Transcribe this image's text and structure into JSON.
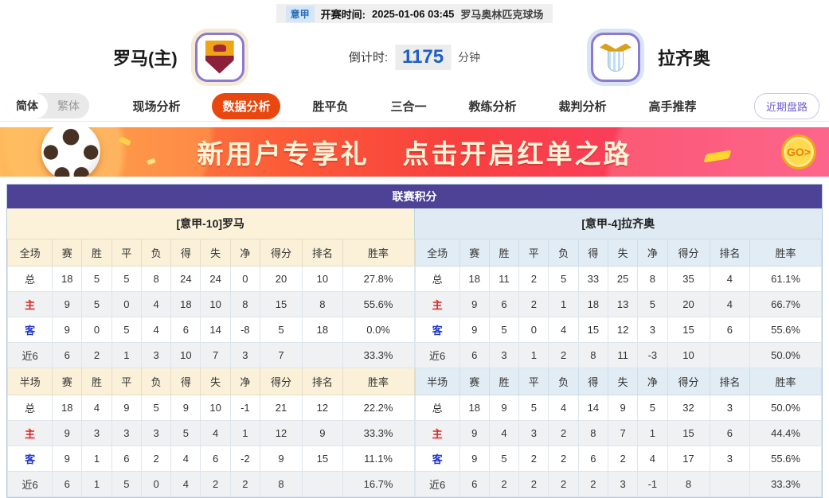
{
  "top_bar": {
    "league_badge": "意甲",
    "kickoff_label": "开赛时间:",
    "kickoff_time": "2025-01-06 03:45",
    "venue": "罗马奥林匹克球场"
  },
  "match": {
    "home_name": "罗马(主)",
    "away_name": "拉齐奥",
    "countdown_label": "倒计时:",
    "countdown_value": "1175",
    "countdown_unit": "分钟"
  },
  "nav": {
    "lang_simplified": "简体",
    "lang_traditional": "繁体",
    "tabs": [
      {
        "label": "现场分析",
        "active": false
      },
      {
        "label": "数据分析",
        "active": true
      },
      {
        "label": "胜平负",
        "active": false
      },
      {
        "label": "三合一",
        "active": false
      },
      {
        "label": "教练分析",
        "active": false
      },
      {
        "label": "裁判分析",
        "active": false
      },
      {
        "label": "高手推荐",
        "active": false
      }
    ],
    "recent_button": "近期盘路"
  },
  "banner": {
    "text_left": "新用户专享礼",
    "text_right": "点击开启红单之路",
    "go_label": "GO>"
  },
  "icons": {
    "home_crest": "roma-crest",
    "away_crest": "lazio-crest",
    "banner_left": "soccer-ball",
    "banner_right": "go-coin"
  },
  "colors": {
    "primary_purple": "#4d4296",
    "active_tab_orange": "#e8470f",
    "home_panel_cream": "#fcf2da",
    "away_panel_blue": "#dfeaf2",
    "home_label_red": "#dd2424",
    "away_label_blue": "#2336cf",
    "countdown_blue": "#1d5ec7",
    "league_badge_bg": "#d4e6f8",
    "league_badge_text": "#2b6cb8"
  },
  "standings": {
    "title": "联赛积分",
    "home_header": "[意甲-10]罗马",
    "away_header": "[意甲-4]拉齐奥",
    "full_label": "全场",
    "half_label": "半场",
    "columns": [
      "赛",
      "胜",
      "平",
      "负",
      "得",
      "失",
      "净",
      "得分",
      "排名",
      "胜率"
    ],
    "home_full": [
      {
        "label": "总",
        "type": "total",
        "cells": [
          "18",
          "5",
          "5",
          "8",
          "24",
          "24",
          "0",
          "20",
          "10",
          "27.8%"
        ]
      },
      {
        "label": "主",
        "type": "home",
        "cells": [
          "9",
          "5",
          "0",
          "4",
          "18",
          "10",
          "8",
          "15",
          "8",
          "55.6%"
        ]
      },
      {
        "label": "客",
        "type": "away",
        "cells": [
          "9",
          "0",
          "5",
          "4",
          "6",
          "14",
          "-8",
          "5",
          "18",
          "0.0%"
        ]
      },
      {
        "label": "近6",
        "type": "recent",
        "cells": [
          "6",
          "2",
          "1",
          "3",
          "10",
          "7",
          "3",
          "7",
          "",
          "33.3%"
        ]
      }
    ],
    "home_half": [
      {
        "label": "总",
        "type": "total",
        "cells": [
          "18",
          "4",
          "9",
          "5",
          "9",
          "10",
          "-1",
          "21",
          "12",
          "22.2%"
        ]
      },
      {
        "label": "主",
        "type": "home",
        "cells": [
          "9",
          "3",
          "3",
          "3",
          "5",
          "4",
          "1",
          "12",
          "9",
          "33.3%"
        ]
      },
      {
        "label": "客",
        "type": "away",
        "cells": [
          "9",
          "1",
          "6",
          "2",
          "4",
          "6",
          "-2",
          "9",
          "15",
          "11.1%"
        ]
      },
      {
        "label": "近6",
        "type": "recent",
        "cells": [
          "6",
          "1",
          "5",
          "0",
          "4",
          "2",
          "2",
          "8",
          "",
          "16.7%"
        ]
      }
    ],
    "away_full": [
      {
        "label": "总",
        "type": "total",
        "cells": [
          "18",
          "11",
          "2",
          "5",
          "33",
          "25",
          "8",
          "35",
          "4",
          "61.1%"
        ]
      },
      {
        "label": "主",
        "type": "home",
        "cells": [
          "9",
          "6",
          "2",
          "1",
          "18",
          "13",
          "5",
          "20",
          "4",
          "66.7%"
        ]
      },
      {
        "label": "客",
        "type": "away",
        "cells": [
          "9",
          "5",
          "0",
          "4",
          "15",
          "12",
          "3",
          "15",
          "6",
          "55.6%"
        ]
      },
      {
        "label": "近6",
        "type": "recent",
        "cells": [
          "6",
          "3",
          "1",
          "2",
          "8",
          "11",
          "-3",
          "10",
          "",
          "50.0%"
        ]
      }
    ],
    "away_half": [
      {
        "label": "总",
        "type": "total",
        "cells": [
          "18",
          "9",
          "5",
          "4",
          "14",
          "9",
          "5",
          "32",
          "3",
          "50.0%"
        ]
      },
      {
        "label": "主",
        "type": "home",
        "cells": [
          "9",
          "4",
          "3",
          "2",
          "8",
          "7",
          "1",
          "15",
          "6",
          "44.4%"
        ]
      },
      {
        "label": "客",
        "type": "away",
        "cells": [
          "9",
          "5",
          "2",
          "2",
          "6",
          "2",
          "4",
          "17",
          "3",
          "55.6%"
        ]
      },
      {
        "label": "近6",
        "type": "recent",
        "cells": [
          "6",
          "2",
          "2",
          "2",
          "2",
          "3",
          "-1",
          "8",
          "",
          "33.3%"
        ]
      }
    ]
  }
}
